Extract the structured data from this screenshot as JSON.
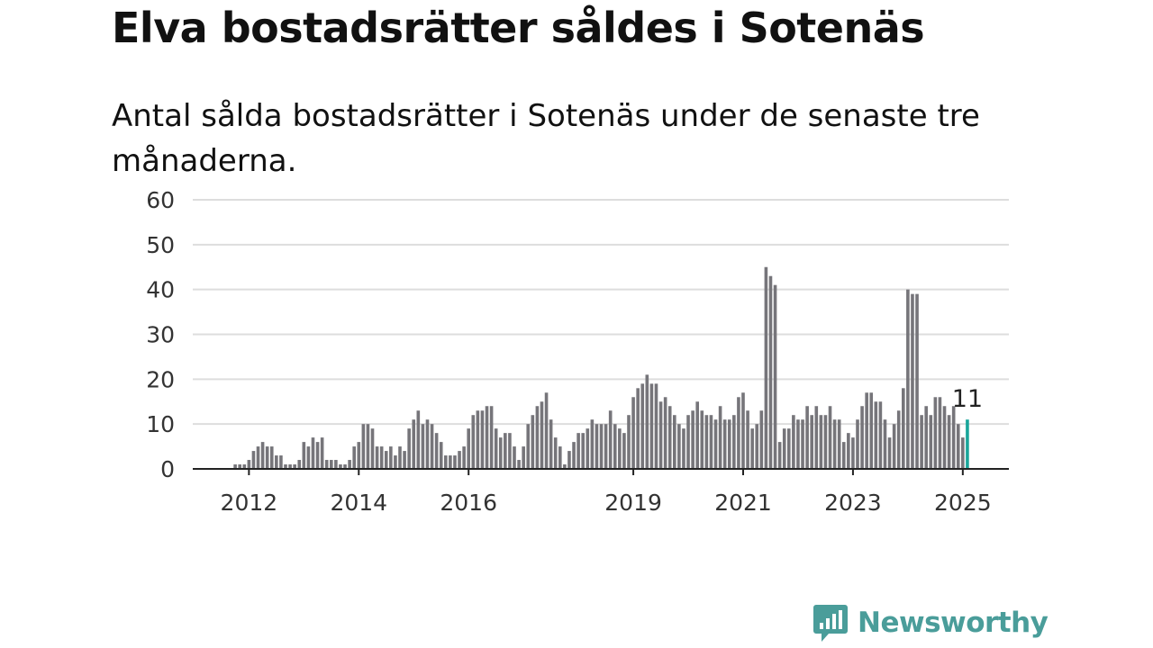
{
  "title": "Elva bostadsrätter såldes i Sotenäs",
  "subtitle": "Antal sålda bostadsrätter i Sotenäs under de senaste tre månaderna.",
  "brand": {
    "name": "Newsworthy",
    "color": "#4a9d9a",
    "icon": "newsworthy-logo-icon"
  },
  "colors": {
    "bar": "#76757a",
    "highlight": "#1aa59a",
    "grid": "#dddddd",
    "axis": "#222222"
  },
  "chart_data": {
    "type": "bar",
    "title": "Elva bostadsrätter såldes i Sotenäs",
    "subtitle": "Antal sålda bostadsrätter i Sotenäs under de senaste tre månaderna.",
    "xlabel": "",
    "ylabel": "",
    "ylim": [
      0,
      60
    ],
    "yticks": [
      "0",
      "10",
      "20",
      "30",
      "40",
      "50",
      "60"
    ],
    "xticks": [
      "2012",
      "2014",
      "2016",
      "2019",
      "2021",
      "2023",
      "2025"
    ],
    "grid": true,
    "x_start": "2011-01",
    "last_value_label": "11",
    "values": [
      0,
      0,
      0,
      0,
      0,
      0,
      0,
      0,
      0,
      1,
      1,
      1,
      2,
      4,
      5,
      6,
      5,
      5,
      3,
      3,
      1,
      1,
      1,
      2,
      6,
      5,
      7,
      6,
      7,
      2,
      2,
      2,
      1,
      1,
      2,
      5,
      6,
      10,
      10,
      9,
      5,
      5,
      4,
      5,
      3,
      5,
      4,
      9,
      11,
      13,
      10,
      11,
      10,
      8,
      6,
      3,
      3,
      3,
      4,
      5,
      9,
      12,
      13,
      13,
      14,
      14,
      9,
      7,
      8,
      8,
      5,
      2,
      5,
      10,
      12,
      14,
      15,
      17,
      11,
      7,
      5,
      1,
      4,
      6,
      8,
      8,
      9,
      11,
      10,
      10,
      10,
      13,
      10,
      9,
      8,
      12,
      16,
      18,
      19,
      21,
      19,
      19,
      15,
      16,
      14,
      12,
      10,
      9,
      12,
      13,
      15,
      13,
      12,
      12,
      11,
      14,
      11,
      11,
      12,
      16,
      17,
      13,
      9,
      10,
      13,
      45,
      43,
      41,
      6,
      9,
      9,
      12,
      11,
      11,
      14,
      12,
      14,
      12,
      12,
      14,
      11,
      11,
      6,
      8,
      7,
      11,
      14,
      17,
      17,
      15,
      15,
      11,
      7,
      10,
      13,
      18,
      40,
      39,
      39,
      12,
      14,
      12,
      16,
      16,
      14,
      12,
      14,
      10,
      7,
      11
    ]
  }
}
